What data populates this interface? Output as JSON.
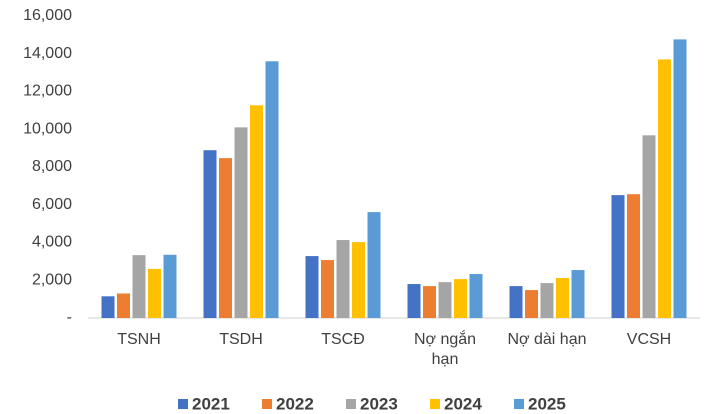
{
  "chart_data": {
    "type": "bar",
    "categories": [
      "TSNH",
      "TSDH",
      "TSCĐ",
      "Nợ ngắn hạn",
      "Nợ dài hạn",
      "VCSH"
    ],
    "series": [
      {
        "name": "2021",
        "color": "#4472c4",
        "values": [
          1150,
          8890,
          3280,
          1800,
          1690,
          6510
        ]
      },
      {
        "name": "2022",
        "color": "#ed7d31",
        "values": [
          1300,
          8470,
          3070,
          1690,
          1480,
          6560
        ]
      },
      {
        "name": "2023",
        "color": "#a5a5a5",
        "values": [
          3330,
          10100,
          4130,
          1900,
          1850,
          9680
        ]
      },
      {
        "name": "2024",
        "color": "#ffc000",
        "values": [
          2600,
          11270,
          4020,
          2060,
          2120,
          13700
        ]
      },
      {
        "name": "2025",
        "color": "#5b9bd5",
        "values": [
          3350,
          13600,
          5610,
          2330,
          2540,
          14760
        ]
      }
    ],
    "ylim": [
      0,
      16000
    ],
    "yticks": [
      {
        "value": 0,
        "label": "-"
      },
      {
        "value": 2000,
        "label": "2,000"
      },
      {
        "value": 4000,
        "label": "4,000"
      },
      {
        "value": 6000,
        "label": "6,000"
      },
      {
        "value": 8000,
        "label": "8,000"
      },
      {
        "value": 10000,
        "label": "10,000"
      },
      {
        "value": 12000,
        "label": "12,000"
      },
      {
        "value": 14000,
        "label": "14,000"
      },
      {
        "value": 16000,
        "label": "16,000"
      }
    ],
    "grid": false,
    "legend": "bottom"
  }
}
